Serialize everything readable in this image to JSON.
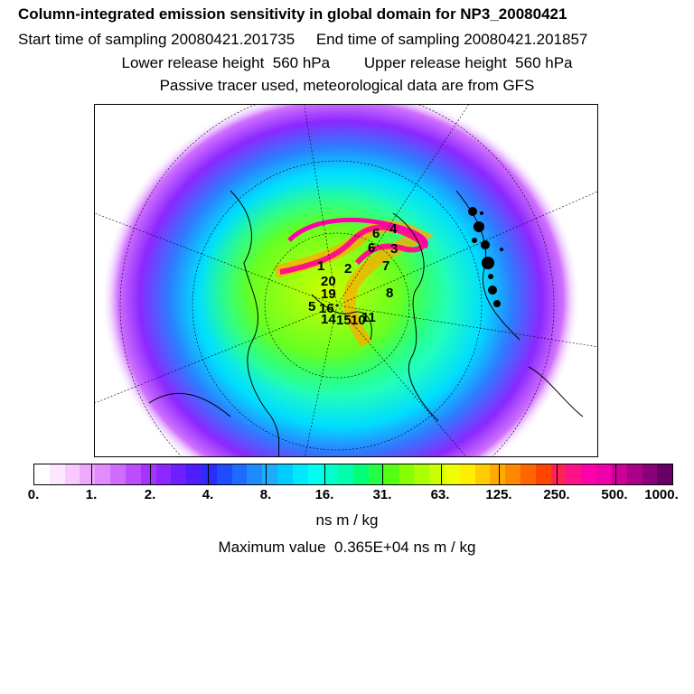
{
  "header": {
    "title": "Column-integrated emission sensitivity in global domain for NP3_20080421",
    "sampling": "Start time of sampling 20080421.201735     End time of sampling 20080421.201857",
    "heights": "Lower release height  560 hPa        Upper release height  560 hPa",
    "tracer": "Passive tracer used, meteorological data are from GFS"
  },
  "map": {
    "projection": "north-polar-stereographic",
    "release_labels": [
      "4",
      "6",
      "6",
      "3",
      "7",
      "1",
      "2",
      "20",
      "8",
      "19",
      "15",
      "16",
      "11",
      "10",
      "14",
      "5"
    ]
  },
  "colorbar": {
    "colors": [
      "#ffffff",
      "#fde6ff",
      "#f9c8ff",
      "#f0a8ff",
      "#e08cff",
      "#cf6cff",
      "#bb4cff",
      "#a634ff",
      "#8c28ff",
      "#6e1eff",
      "#4e1eff",
      "#2c2cff",
      "#1e4cff",
      "#1e6cff",
      "#1e8cff",
      "#1eacff",
      "#00ccff",
      "#00e8ff",
      "#00ffee",
      "#00ffcc",
      "#00ffaa",
      "#00ff77",
      "#22ff44",
      "#55ff11",
      "#88ff00",
      "#aaff00",
      "#ccff00",
      "#eeff00",
      "#ffee00",
      "#ffcc00",
      "#ffaa00",
      "#ff8800",
      "#ff6600",
      "#ff4400",
      "#ff2255",
      "#ff1188",
      "#ff00aa",
      "#ee00aa",
      "#cc0099",
      "#aa0088",
      "#880077",
      "#660066"
    ],
    "tick_labels": [
      "0.",
      "1.",
      "2.",
      "4.",
      "8.",
      "16.",
      "31.",
      "63.",
      "125.",
      "250.",
      "500.",
      "1000."
    ],
    "units": "ns m / kg"
  },
  "max_value": "Maximum value  0.365E+04 ns m / kg"
}
